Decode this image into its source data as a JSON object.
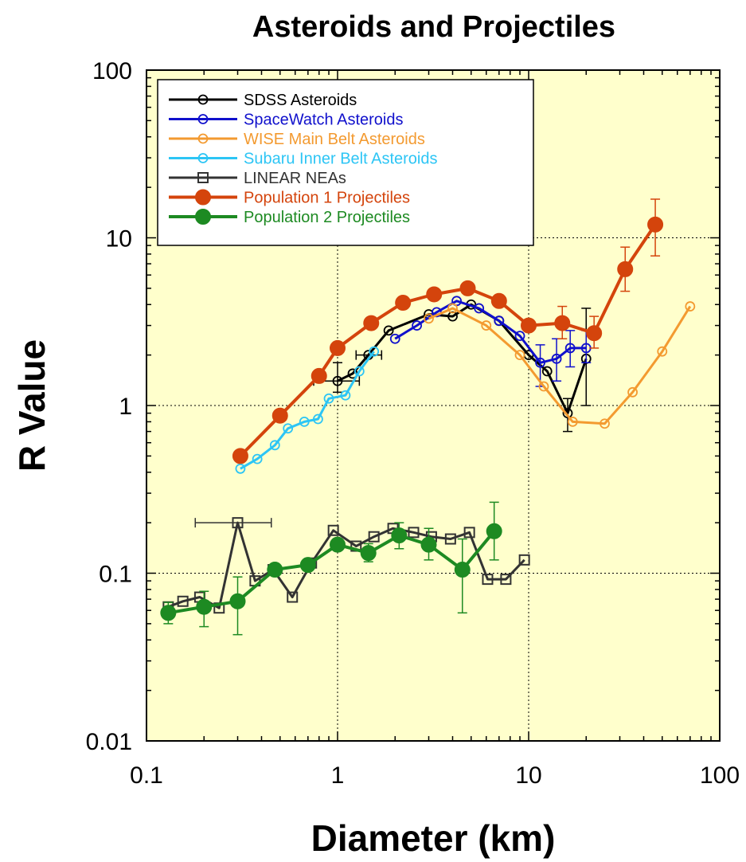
{
  "chart_data": {
    "type": "line",
    "title": "Asteroids and Projectiles",
    "xlabel": "Diameter (km)",
    "ylabel": "R Value",
    "xscale": "log",
    "yscale": "log",
    "xlim": [
      0.1,
      100
    ],
    "ylim": [
      0.01,
      100
    ],
    "x_ticks": [
      {
        "value": 0.1,
        "label": "0.1"
      },
      {
        "value": 1,
        "label": "1"
      },
      {
        "value": 10,
        "label": "10"
      },
      {
        "value": 100,
        "label": "100"
      }
    ],
    "y_ticks": [
      {
        "value": 0.01,
        "label": "0.01"
      },
      {
        "value": 0.1,
        "label": "0.1"
      },
      {
        "value": 1,
        "label": "1"
      },
      {
        "value": 10,
        "label": "10"
      },
      {
        "value": 100,
        "label": "100"
      }
    ],
    "plot_background": "#ffffcc",
    "grid": "dotted at major decades",
    "legend_position": "top-left",
    "series": [
      {
        "name": "SDSS Asteroids",
        "color": "#000000",
        "marker": "open-circle",
        "points": [
          {
            "x": 1.0,
            "y": 1.4,
            "yerr": [
              1.2,
              1.8
            ],
            "xerr": [
              0.75,
              1.3
            ]
          },
          {
            "x": 1.2,
            "y": 1.55
          },
          {
            "x": 1.45,
            "y": 2.0,
            "xerr": [
              1.25,
              1.7
            ]
          },
          {
            "x": 1.85,
            "y": 2.8
          },
          {
            "x": 3.0,
            "y": 3.5
          },
          {
            "x": 4.0,
            "y": 3.4
          },
          {
            "x": 5.0,
            "y": 4.0
          },
          {
            "x": 7.0,
            "y": 3.2
          },
          {
            "x": 10.0,
            "y": 2.0
          },
          {
            "x": 12.5,
            "y": 1.6
          },
          {
            "x": 16.0,
            "y": 0.9,
            "yerr": [
              0.7,
              1.1
            ]
          },
          {
            "x": 20.0,
            "y": 1.9,
            "yerr": [
              1.0,
              3.8
            ]
          }
        ]
      },
      {
        "name": "SpaceWatch Asteroids",
        "color": "#1010cc",
        "marker": "open-circle",
        "points": [
          {
            "x": 2.0,
            "y": 2.5
          },
          {
            "x": 2.6,
            "y": 3.0
          },
          {
            "x": 3.3,
            "y": 3.6
          },
          {
            "x": 4.2,
            "y": 4.2
          },
          {
            "x": 5.5,
            "y": 3.8
          },
          {
            "x": 7.0,
            "y": 3.2
          },
          {
            "x": 9.0,
            "y": 2.6
          },
          {
            "x": 11.5,
            "y": 1.8,
            "yerr": [
              1.3,
              2.3
            ]
          },
          {
            "x": 14.0,
            "y": 1.9,
            "yerr": [
              1.4,
              2.5
            ]
          },
          {
            "x": 16.5,
            "y": 2.2,
            "yerr": [
              1.7,
              2.8
            ]
          },
          {
            "x": 20.0,
            "y": 2.2,
            "yerr": [
              1.8,
              2.8
            ]
          }
        ]
      },
      {
        "name": "WISE Main Belt Asteroids",
        "color": "#f39a30",
        "marker": "open-circle",
        "points": [
          {
            "x": 3.0,
            "y": 3.3
          },
          {
            "x": 4.0,
            "y": 3.8
          },
          {
            "x": 6.0,
            "y": 3.0
          },
          {
            "x": 9.0,
            "y": 2.0
          },
          {
            "x": 12.0,
            "y": 1.3
          },
          {
            "x": 17.0,
            "y": 0.8
          },
          {
            "x": 25.0,
            "y": 0.78
          },
          {
            "x": 35.0,
            "y": 1.2
          },
          {
            "x": 50.0,
            "y": 2.1
          },
          {
            "x": 70.0,
            "y": 3.9
          }
        ]
      },
      {
        "name": "Subaru Inner Belt Asteroids",
        "color": "#2cc5f5",
        "marker": "open-circle",
        "points": [
          {
            "x": 0.31,
            "y": 0.42
          },
          {
            "x": 0.38,
            "y": 0.48
          },
          {
            "x": 0.47,
            "y": 0.58
          },
          {
            "x": 0.55,
            "y": 0.73
          },
          {
            "x": 0.67,
            "y": 0.8
          },
          {
            "x": 0.79,
            "y": 0.83
          },
          {
            "x": 0.9,
            "y": 1.1
          },
          {
            "x": 1.1,
            "y": 1.15
          },
          {
            "x": 1.3,
            "y": 1.6
          },
          {
            "x": 1.55,
            "y": 2.1
          }
        ]
      },
      {
        "name": "LINEAR NEAs",
        "color": "#333333",
        "marker": "open-square",
        "points": [
          {
            "x": 0.13,
            "y": 0.063
          },
          {
            "x": 0.155,
            "y": 0.068
          },
          {
            "x": 0.19,
            "y": 0.072
          },
          {
            "x": 0.24,
            "y": 0.062
          },
          {
            "x": 0.3,
            "y": 0.2,
            "xerr": [
              0.18,
              0.45
            ]
          },
          {
            "x": 0.37,
            "y": 0.09
          },
          {
            "x": 0.46,
            "y": 0.105
          },
          {
            "x": 0.58,
            "y": 0.072
          },
          {
            "x": 0.73,
            "y": 0.115
          },
          {
            "x": 0.95,
            "y": 0.18
          },
          {
            "x": 1.25,
            "y": 0.145
          },
          {
            "x": 1.55,
            "y": 0.165
          },
          {
            "x": 1.95,
            "y": 0.185
          },
          {
            "x": 2.5,
            "y": 0.175
          },
          {
            "x": 3.1,
            "y": 0.165
          },
          {
            "x": 3.9,
            "y": 0.16
          },
          {
            "x": 4.9,
            "y": 0.175
          },
          {
            "x": 6.1,
            "y": 0.092
          },
          {
            "x": 7.6,
            "y": 0.092
          },
          {
            "x": 9.5,
            "y": 0.12
          }
        ]
      },
      {
        "name": "Population 1 Projectiles",
        "color": "#d4440c",
        "marker": "filled-circle",
        "points": [
          {
            "x": 0.31,
            "y": 0.5
          },
          {
            "x": 0.5,
            "y": 0.87
          },
          {
            "x": 0.8,
            "y": 1.5
          },
          {
            "x": 1.0,
            "y": 2.2
          },
          {
            "x": 1.5,
            "y": 3.1
          },
          {
            "x": 2.2,
            "y": 4.1
          },
          {
            "x": 3.2,
            "y": 4.6
          },
          {
            "x": 4.8,
            "y": 5.0
          },
          {
            "x": 7.0,
            "y": 4.2
          },
          {
            "x": 10.0,
            "y": 3.0
          },
          {
            "x": 15.0,
            "y": 3.1,
            "yerr": [
              2.5,
              3.9
            ]
          },
          {
            "x": 22.0,
            "y": 2.7,
            "yerr": [
              2.2,
              3.4
            ]
          },
          {
            "x": 32.0,
            "y": 6.5,
            "yerr": [
              4.8,
              8.8
            ]
          },
          {
            "x": 46.0,
            "y": 12.0,
            "yerr": [
              7.8,
              17.0
            ]
          }
        ]
      },
      {
        "name": "Population 2 Projectiles",
        "color": "#1d8a22",
        "marker": "filled-circle",
        "points": [
          {
            "x": 0.13,
            "y": 0.058,
            "yerr": [
              0.05,
              0.067
            ]
          },
          {
            "x": 0.2,
            "y": 0.063,
            "yerr": [
              0.048,
              0.078
            ]
          },
          {
            "x": 0.3,
            "y": 0.068,
            "yerr": [
              0.043,
              0.095
            ]
          },
          {
            "x": 0.47,
            "y": 0.105
          },
          {
            "x": 0.7,
            "y": 0.112
          },
          {
            "x": 1.0,
            "y": 0.148
          },
          {
            "x": 1.45,
            "y": 0.132,
            "yerr": [
              0.117,
              0.15
            ]
          },
          {
            "x": 2.1,
            "y": 0.168,
            "yerr": [
              0.14,
              0.2
            ]
          },
          {
            "x": 3.0,
            "y": 0.148,
            "yerr": [
              0.12,
              0.185
            ]
          },
          {
            "x": 4.5,
            "y": 0.105,
            "yerr": [
              0.058,
              0.16
            ]
          },
          {
            "x": 6.6,
            "y": 0.178,
            "yerr": [
              0.12,
              0.265
            ]
          }
        ]
      }
    ]
  }
}
